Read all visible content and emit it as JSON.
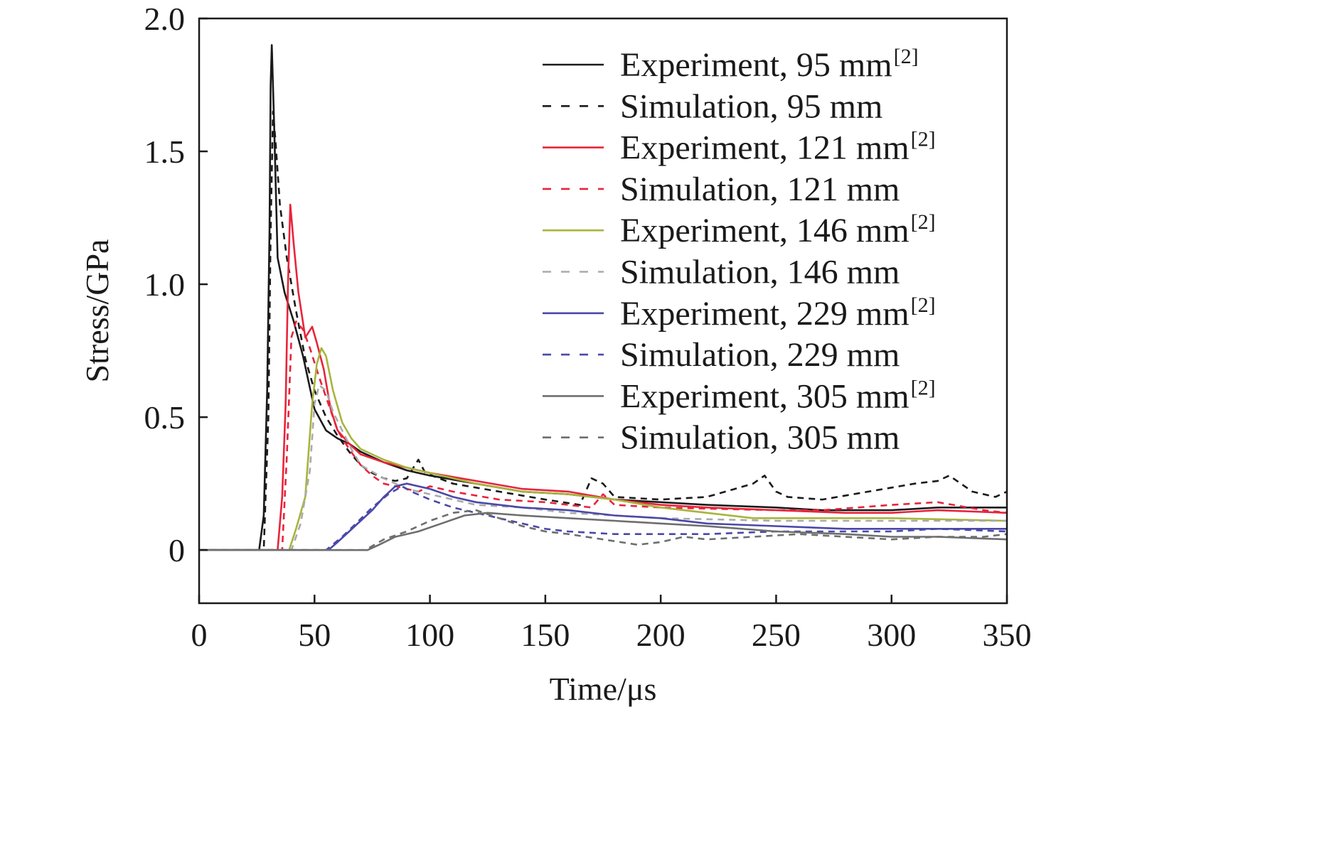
{
  "chart_data": {
    "type": "line",
    "xlabel": "Time/μs",
    "ylabel": "Stress/GPa",
    "xlim": [
      0,
      350
    ],
    "ylim": [
      -0.2,
      2.0
    ],
    "x_ticks": [
      0,
      50,
      100,
      150,
      200,
      250,
      300,
      350
    ],
    "x_tick_labels": [
      "0",
      "50",
      "100",
      "150",
      "200",
      "250",
      "300",
      "350"
    ],
    "y_ticks": [
      0,
      0.5,
      1.0,
      1.5,
      2.0
    ],
    "y_tick_labels": [
      "0",
      "0.5",
      "1.0",
      "1.5",
      "2.0"
    ],
    "grid": false,
    "legend_position": "top-right",
    "series": [
      {
        "name": "Experiment, 95 mm",
        "name_superscript": "[2]",
        "color": "#1a1a1a",
        "dash": "solid",
        "points": [
          [
            0,
            0
          ],
          [
            26,
            0
          ],
          [
            28,
            0.13
          ],
          [
            29.5,
            0.6
          ],
          [
            30.5,
            1.2
          ],
          [
            31,
            1.75
          ],
          [
            31.5,
            1.9
          ],
          [
            32.5,
            1.6
          ],
          [
            34,
            1.1
          ],
          [
            37,
            0.97
          ],
          [
            41,
            0.86
          ],
          [
            45,
            0.73
          ],
          [
            50,
            0.53
          ],
          [
            55,
            0.45
          ],
          [
            60,
            0.42
          ],
          [
            65,
            0.4
          ],
          [
            70,
            0.37
          ],
          [
            80,
            0.33
          ],
          [
            90,
            0.3
          ],
          [
            100,
            0.28
          ],
          [
            120,
            0.25
          ],
          [
            140,
            0.22
          ],
          [
            160,
            0.21
          ],
          [
            180,
            0.19
          ],
          [
            200,
            0.18
          ],
          [
            220,
            0.17
          ],
          [
            250,
            0.16
          ],
          [
            270,
            0.15
          ],
          [
            300,
            0.15
          ],
          [
            320,
            0.16
          ],
          [
            350,
            0.16
          ]
        ]
      },
      {
        "name": "Simulation, 95 mm",
        "color": "#1a1a1a",
        "dash": "dashed",
        "points": [
          [
            0,
            0
          ],
          [
            28,
            0
          ],
          [
            30,
            0.5
          ],
          [
            31,
            1.2
          ],
          [
            32,
            1.65
          ],
          [
            33,
            1.55
          ],
          [
            35,
            1.3
          ],
          [
            38,
            1.1
          ],
          [
            42,
            0.9
          ],
          [
            46,
            0.72
          ],
          [
            50,
            0.6
          ],
          [
            55,
            0.5
          ],
          [
            60,
            0.43
          ],
          [
            65,
            0.37
          ],
          [
            70,
            0.32
          ],
          [
            75,
            0.29
          ],
          [
            80,
            0.27
          ],
          [
            85,
            0.26
          ],
          [
            90,
            0.27
          ],
          [
            95,
            0.34
          ],
          [
            98,
            0.29
          ],
          [
            110,
            0.25
          ],
          [
            130,
            0.22
          ],
          [
            150,
            0.19
          ],
          [
            165,
            0.17
          ],
          [
            170,
            0.27
          ],
          [
            175,
            0.25
          ],
          [
            180,
            0.2
          ],
          [
            200,
            0.19
          ],
          [
            220,
            0.2
          ],
          [
            240,
            0.25
          ],
          [
            245,
            0.28
          ],
          [
            250,
            0.22
          ],
          [
            255,
            0.2
          ],
          [
            270,
            0.19
          ],
          [
            290,
            0.22
          ],
          [
            310,
            0.25
          ],
          [
            320,
            0.26
          ],
          [
            325,
            0.28
          ],
          [
            335,
            0.22
          ],
          [
            345,
            0.2
          ],
          [
            350,
            0.22
          ]
        ]
      },
      {
        "name": "Experiment, 121 mm",
        "name_superscript": "[2]",
        "color": "#e8243a",
        "dash": "solid",
        "points": [
          [
            0,
            0
          ],
          [
            34,
            0
          ],
          [
            36,
            0.2
          ],
          [
            37.5,
            0.55
          ],
          [
            38.5,
            1.0
          ],
          [
            39.5,
            1.3
          ],
          [
            41,
            1.15
          ],
          [
            43,
            0.97
          ],
          [
            46,
            0.8
          ],
          [
            49,
            0.84
          ],
          [
            51,
            0.78
          ],
          [
            54,
            0.68
          ],
          [
            57,
            0.53
          ],
          [
            60,
            0.45
          ],
          [
            65,
            0.4
          ],
          [
            70,
            0.36
          ],
          [
            80,
            0.33
          ],
          [
            90,
            0.31
          ],
          [
            100,
            0.29
          ],
          [
            120,
            0.26
          ],
          [
            140,
            0.23
          ],
          [
            160,
            0.22
          ],
          [
            180,
            0.19
          ],
          [
            200,
            0.17
          ],
          [
            220,
            0.16
          ],
          [
            250,
            0.15
          ],
          [
            280,
            0.14
          ],
          [
            300,
            0.14
          ],
          [
            320,
            0.15
          ],
          [
            350,
            0.14
          ]
        ]
      },
      {
        "name": "Simulation, 121 mm",
        "color": "#e8243a",
        "dash": "dashed",
        "points": [
          [
            0,
            0
          ],
          [
            36,
            0
          ],
          [
            38,
            0.35
          ],
          [
            40,
            0.8
          ],
          [
            42,
            0.86
          ],
          [
            45,
            0.83
          ],
          [
            48,
            0.76
          ],
          [
            52,
            0.65
          ],
          [
            56,
            0.55
          ],
          [
            60,
            0.45
          ],
          [
            65,
            0.38
          ],
          [
            70,
            0.32
          ],
          [
            75,
            0.28
          ],
          [
            80,
            0.25
          ],
          [
            90,
            0.23
          ],
          [
            95,
            0.22
          ],
          [
            100,
            0.24
          ],
          [
            110,
            0.22
          ],
          [
            130,
            0.19
          ],
          [
            150,
            0.18
          ],
          [
            160,
            0.17
          ],
          [
            170,
            0.16
          ],
          [
            175,
            0.21
          ],
          [
            180,
            0.17
          ],
          [
            200,
            0.16
          ],
          [
            250,
            0.15
          ],
          [
            270,
            0.15
          ],
          [
            300,
            0.17
          ],
          [
            320,
            0.18
          ],
          [
            340,
            0.15
          ],
          [
            350,
            0.14
          ]
        ]
      },
      {
        "name": "Experiment, 146 mm",
        "name_superscript": "[2]",
        "color": "#a8b43c",
        "dash": "solid",
        "points": [
          [
            0,
            0
          ],
          [
            39,
            0
          ],
          [
            42,
            0.08
          ],
          [
            46,
            0.2
          ],
          [
            49,
            0.55
          ],
          [
            51,
            0.7
          ],
          [
            53,
            0.76
          ],
          [
            55,
            0.73
          ],
          [
            58,
            0.6
          ],
          [
            62,
            0.48
          ],
          [
            66,
            0.42
          ],
          [
            70,
            0.38
          ],
          [
            80,
            0.34
          ],
          [
            90,
            0.31
          ],
          [
            100,
            0.29
          ],
          [
            120,
            0.25
          ],
          [
            140,
            0.22
          ],
          [
            160,
            0.21
          ],
          [
            180,
            0.19
          ],
          [
            200,
            0.16
          ],
          [
            220,
            0.14
          ],
          [
            240,
            0.12
          ],
          [
            260,
            0.12
          ],
          [
            300,
            0.12
          ],
          [
            350,
            0.11
          ]
        ]
      },
      {
        "name": "Simulation, 146 mm",
        "color": "#aaaaaa",
        "dash": "dashed",
        "points": [
          [
            0,
            0
          ],
          [
            40,
            0
          ],
          [
            44,
            0.1
          ],
          [
            48,
            0.3
          ],
          [
            50,
            0.55
          ],
          [
            52,
            0.62
          ],
          [
            55,
            0.6
          ],
          [
            58,
            0.52
          ],
          [
            62,
            0.45
          ],
          [
            66,
            0.38
          ],
          [
            70,
            0.32
          ],
          [
            80,
            0.27
          ],
          [
            90,
            0.23
          ],
          [
            100,
            0.21
          ],
          [
            110,
            0.19
          ],
          [
            120,
            0.17
          ],
          [
            140,
            0.16
          ],
          [
            160,
            0.14
          ],
          [
            180,
            0.13
          ],
          [
            200,
            0.12
          ],
          [
            250,
            0.11
          ],
          [
            300,
            0.11
          ],
          [
            350,
            0.11
          ]
        ]
      },
      {
        "name": "Experiment, 229 mm",
        "name_superscript": "[2]",
        "color": "#4a48a8",
        "dash": "solid",
        "points": [
          [
            0,
            0
          ],
          [
            56,
            0
          ],
          [
            60,
            0.03
          ],
          [
            65,
            0.07
          ],
          [
            70,
            0.11
          ],
          [
            75,
            0.15
          ],
          [
            80,
            0.2
          ],
          [
            85,
            0.24
          ],
          [
            90,
            0.25
          ],
          [
            100,
            0.23
          ],
          [
            110,
            0.2
          ],
          [
            120,
            0.18
          ],
          [
            140,
            0.16
          ],
          [
            160,
            0.15
          ],
          [
            180,
            0.13
          ],
          [
            200,
            0.12
          ],
          [
            220,
            0.1
          ],
          [
            250,
            0.09
          ],
          [
            280,
            0.08
          ],
          [
            300,
            0.08
          ],
          [
            320,
            0.08
          ],
          [
            350,
            0.08
          ]
        ]
      },
      {
        "name": "Simulation, 229 mm",
        "color": "#4a48a8",
        "dash": "dashed",
        "points": [
          [
            0,
            0
          ],
          [
            55,
            0
          ],
          [
            62,
            0.05
          ],
          [
            68,
            0.1
          ],
          [
            75,
            0.16
          ],
          [
            82,
            0.21
          ],
          [
            88,
            0.24
          ],
          [
            92,
            0.22
          ],
          [
            100,
            0.19
          ],
          [
            110,
            0.16
          ],
          [
            120,
            0.14
          ],
          [
            130,
            0.12
          ],
          [
            140,
            0.1
          ],
          [
            150,
            0.08
          ],
          [
            160,
            0.07
          ],
          [
            180,
            0.06
          ],
          [
            200,
            0.06
          ],
          [
            220,
            0.06
          ],
          [
            250,
            0.07
          ],
          [
            280,
            0.07
          ],
          [
            300,
            0.07
          ],
          [
            320,
            0.08
          ],
          [
            350,
            0.07
          ]
        ]
      },
      {
        "name": "Experiment, 305 mm",
        "name_superscript": "[2]",
        "color": "#6e6e6e",
        "dash": "solid",
        "points": [
          [
            0,
            0
          ],
          [
            73,
            0
          ],
          [
            78,
            0.02
          ],
          [
            85,
            0.05
          ],
          [
            95,
            0.07
          ],
          [
            105,
            0.1
          ],
          [
            115,
            0.13
          ],
          [
            125,
            0.14
          ],
          [
            140,
            0.13
          ],
          [
            160,
            0.12
          ],
          [
            180,
            0.11
          ],
          [
            200,
            0.1
          ],
          [
            220,
            0.09
          ],
          [
            250,
            0.07
          ],
          [
            280,
            0.06
          ],
          [
            300,
            0.05
          ],
          [
            320,
            0.05
          ],
          [
            350,
            0.04
          ]
        ]
      },
      {
        "name": "Simulation, 305 mm",
        "color": "#6e6e6e",
        "dash": "dashed",
        "points": [
          [
            0,
            0
          ],
          [
            72,
            0
          ],
          [
            80,
            0.04
          ],
          [
            90,
            0.07
          ],
          [
            100,
            0.11
          ],
          [
            110,
            0.14
          ],
          [
            120,
            0.15
          ],
          [
            130,
            0.12
          ],
          [
            140,
            0.09
          ],
          [
            150,
            0.07
          ],
          [
            160,
            0.06
          ],
          [
            175,
            0.04
          ],
          [
            190,
            0.02
          ],
          [
            200,
            0.03
          ],
          [
            210,
            0.05
          ],
          [
            220,
            0.04
          ],
          [
            240,
            0.05
          ],
          [
            260,
            0.06
          ],
          [
            280,
            0.05
          ],
          [
            300,
            0.04
          ],
          [
            320,
            0.05
          ],
          [
            340,
            0.05
          ],
          [
            350,
            0.06
          ]
        ]
      }
    ]
  }
}
